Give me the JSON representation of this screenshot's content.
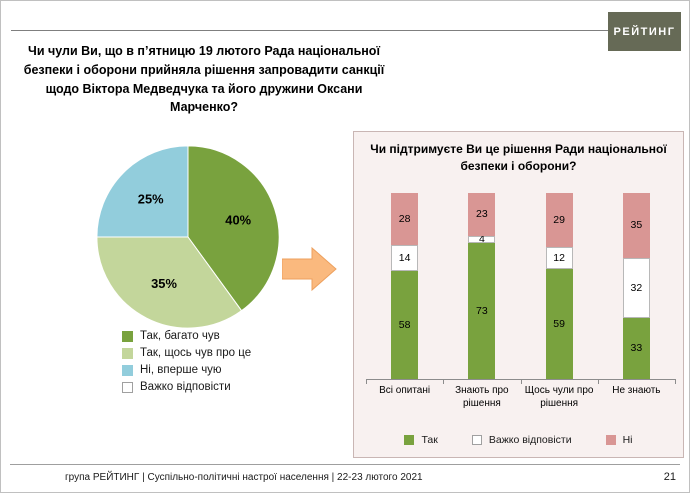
{
  "logo": {
    "text": "РЕЙТИНГ"
  },
  "question_left": "Чи чули Ви, що в п’ятницю 19 лютого Рада національної безпеки і оборони прийняла рішення запровадити санкції щодо Віктора Медведчука та його дружини Оксани Марченко?",
  "panel": {
    "title": "Чи підтримуєте Ви це рішення Ради національної безпеки і оборони?"
  },
  "footer": {
    "source": "група РЕЙТИНГ | Суспільно-політичні настрої населення | 22-23 лютого 2021",
    "page": "21"
  },
  "colors": {
    "green_dark": "#79A23E",
    "green_light": "#C3D69B",
    "blue_light": "#92CDDC",
    "pink": "#D99694",
    "white": "#FFFFFF",
    "arrow": "#FAB97E",
    "panel_bg": "#F8F1F0",
    "logo_bg": "#666A56"
  },
  "chart_data": [
    {
      "type": "pie",
      "labels": [
        "Так, багато чув",
        "Так, щось чув про це",
        "Ні, вперше чую",
        "Важко відповісти"
      ],
      "values": [
        40,
        35,
        25,
        0
      ],
      "value_labels": [
        "40%",
        "35%",
        "25%",
        ""
      ],
      "colors": [
        "#79A23E",
        "#C3D69B",
        "#92CDDC",
        "#FFFFFF"
      ],
      "legend_position": "bottom-left"
    },
    {
      "type": "bar",
      "stacked": true,
      "categories": [
        "Всі опитані",
        "Знають про рішення",
        "Щось чули про рішення",
        "Не знають"
      ],
      "series": [
        {
          "name": "Так",
          "color": "#79A23E",
          "values": [
            58,
            73,
            59,
            33
          ]
        },
        {
          "name": "Важко відповісти",
          "color": "#FFFFFF",
          "values": [
            14,
            4,
            12,
            32
          ]
        },
        {
          "name": "Ні",
          "color": "#D99694",
          "values": [
            28,
            23,
            29,
            35
          ]
        }
      ],
      "ylim": [
        0,
        100
      ],
      "legend_position": "bottom"
    }
  ]
}
